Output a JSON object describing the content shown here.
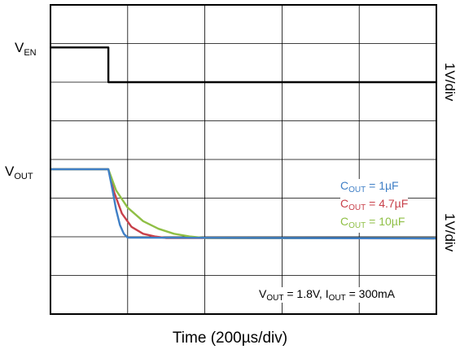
{
  "chart_data": {
    "type": "line",
    "xlabel": "Time (200µs/div)",
    "grid": true,
    "divisions": {
      "x": 10,
      "y": 8
    },
    "channels": [
      {
        "label": "V",
        "label_sub": "EN",
        "scale": "1V/div"
      },
      {
        "label": "V",
        "label_sub": "OUT",
        "scale": "1V/div"
      }
    ],
    "legend_entries": [
      {
        "text": "C",
        "sub": "OUT",
        "value": " = 1µF",
        "color": "#3f7fc6"
      },
      {
        "text": "C",
        "sub": "OUT",
        "value": " = 4.7µF",
        "color": "#c8404a"
      },
      {
        "text": "C",
        "sub": "OUT",
        "value": " = 10µF",
        "color": "#8fbf45"
      }
    ],
    "conditions": {
      "v": "V",
      "v_sub": "OUT",
      "v_val": " = 1.8V, ",
      "i": "I",
      "i_sub": "OUT",
      "i_val": " = 300mA"
    },
    "time_unit_us_per_div": 200,
    "series": [
      {
        "name": "V_EN",
        "color": "#000000",
        "x": [
          0,
          300,
          300,
          2000
        ],
        "y": [
          1.8,
          1.8,
          0,
          0
        ]
      },
      {
        "name": "V_OUT (C_OUT = 1µF)",
        "color": "#3f7fc6",
        "x": [
          0,
          300,
          320,
          340,
          360,
          380,
          400,
          2000
        ],
        "y": [
          1.8,
          1.8,
          1.3,
          0.75,
          0.35,
          0.12,
          0.02,
          0
        ]
      },
      {
        "name": "V_OUT (C_OUT = 4.7µF)",
        "color": "#c8404a",
        "x": [
          0,
          300,
          330,
          370,
          420,
          480,
          540,
          600,
          2000
        ],
        "y": [
          1.8,
          1.8,
          1.2,
          0.65,
          0.3,
          0.12,
          0.05,
          0.01,
          0
        ]
      },
      {
        "name": "V_OUT (C_OUT = 10µF)",
        "color": "#8fbf45",
        "x": [
          0,
          300,
          340,
          400,
          480,
          560,
          640,
          720,
          800,
          2000
        ],
        "y": [
          1.8,
          1.8,
          1.25,
          0.8,
          0.45,
          0.25,
          0.12,
          0.05,
          0.01,
          0
        ]
      }
    ]
  }
}
